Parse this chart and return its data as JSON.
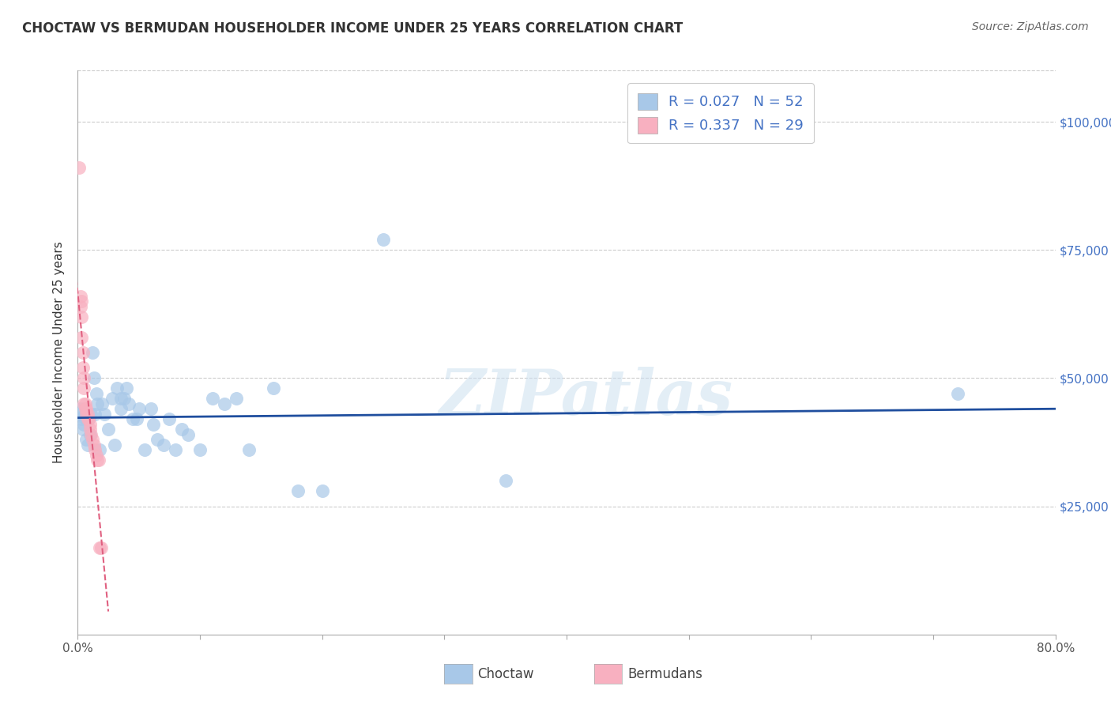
{
  "title": "CHOCTAW VS BERMUDAN HOUSEHOLDER INCOME UNDER 25 YEARS CORRELATION CHART",
  "source": "Source: ZipAtlas.com",
  "ylabel": "Householder Income Under 25 years",
  "watermark": "ZIPatlas",
  "xlim": [
    0.0,
    0.8
  ],
  "ylim": [
    0,
    110000
  ],
  "yticks": [
    0,
    25000,
    50000,
    75000,
    100000
  ],
  "xtick_positions": [
    0.0,
    0.1,
    0.2,
    0.3,
    0.4,
    0.5,
    0.6,
    0.7,
    0.8
  ],
  "xtick_labels": [
    "0.0%",
    "",
    "",
    "",
    "",
    "",
    "",
    "",
    "80.0%"
  ],
  "choctaw_color": "#a8c8e8",
  "bermuda_color": "#f8b0c0",
  "choctaw_edge_color": "#a8c8e8",
  "bermuda_edge_color": "#f8b0c0",
  "choctaw_line_color": "#1f4e9e",
  "bermuda_line_color": "#e06080",
  "legend_box_blue": "#a8c8e8",
  "legend_box_pink": "#f8b0c0",
  "legend_text_color": "#4472c4",
  "right_tick_color": "#4472c4",
  "grid_color": "#cccccc",
  "choctaw_x": [
    0.001,
    0.002,
    0.003,
    0.004,
    0.004,
    0.005,
    0.006,
    0.007,
    0.008,
    0.009,
    0.01,
    0.011,
    0.012,
    0.013,
    0.014,
    0.015,
    0.016,
    0.018,
    0.02,
    0.022,
    0.025,
    0.028,
    0.03,
    0.032,
    0.035,
    0.035,
    0.038,
    0.04,
    0.042,
    0.045,
    0.048,
    0.05,
    0.055,
    0.06,
    0.062,
    0.065,
    0.07,
    0.075,
    0.08,
    0.085,
    0.09,
    0.1,
    0.11,
    0.12,
    0.13,
    0.14,
    0.16,
    0.18,
    0.2,
    0.25,
    0.35,
    0.72
  ],
  "choctaw_y": [
    43000,
    44000,
    42000,
    40000,
    42500,
    41000,
    43000,
    38000,
    37000,
    42000,
    39000,
    43000,
    55000,
    50000,
    43000,
    47000,
    45000,
    36000,
    45000,
    43000,
    40000,
    46000,
    37000,
    48000,
    46000,
    44000,
    46000,
    48000,
    45000,
    42000,
    42000,
    44000,
    36000,
    44000,
    41000,
    38000,
    37000,
    42000,
    36000,
    40000,
    39000,
    36000,
    46000,
    45000,
    46000,
    36000,
    48000,
    28000,
    28000,
    77000,
    30000,
    47000
  ],
  "bermuda_x": [
    0.001,
    0.002,
    0.002,
    0.003,
    0.003,
    0.003,
    0.004,
    0.004,
    0.005,
    0.005,
    0.005,
    0.006,
    0.006,
    0.007,
    0.007,
    0.008,
    0.008,
    0.009,
    0.01,
    0.01,
    0.011,
    0.012,
    0.013,
    0.014,
    0.015,
    0.016,
    0.017,
    0.018,
    0.019
  ],
  "bermuda_y": [
    91000,
    66000,
    64000,
    65000,
    62000,
    58000,
    55000,
    52000,
    50000,
    48000,
    45000,
    45000,
    44000,
    44000,
    43000,
    43000,
    42000,
    42000,
    41000,
    40000,
    39000,
    38000,
    37000,
    36000,
    35000,
    34000,
    34000,
    17000,
    17000
  ]
}
